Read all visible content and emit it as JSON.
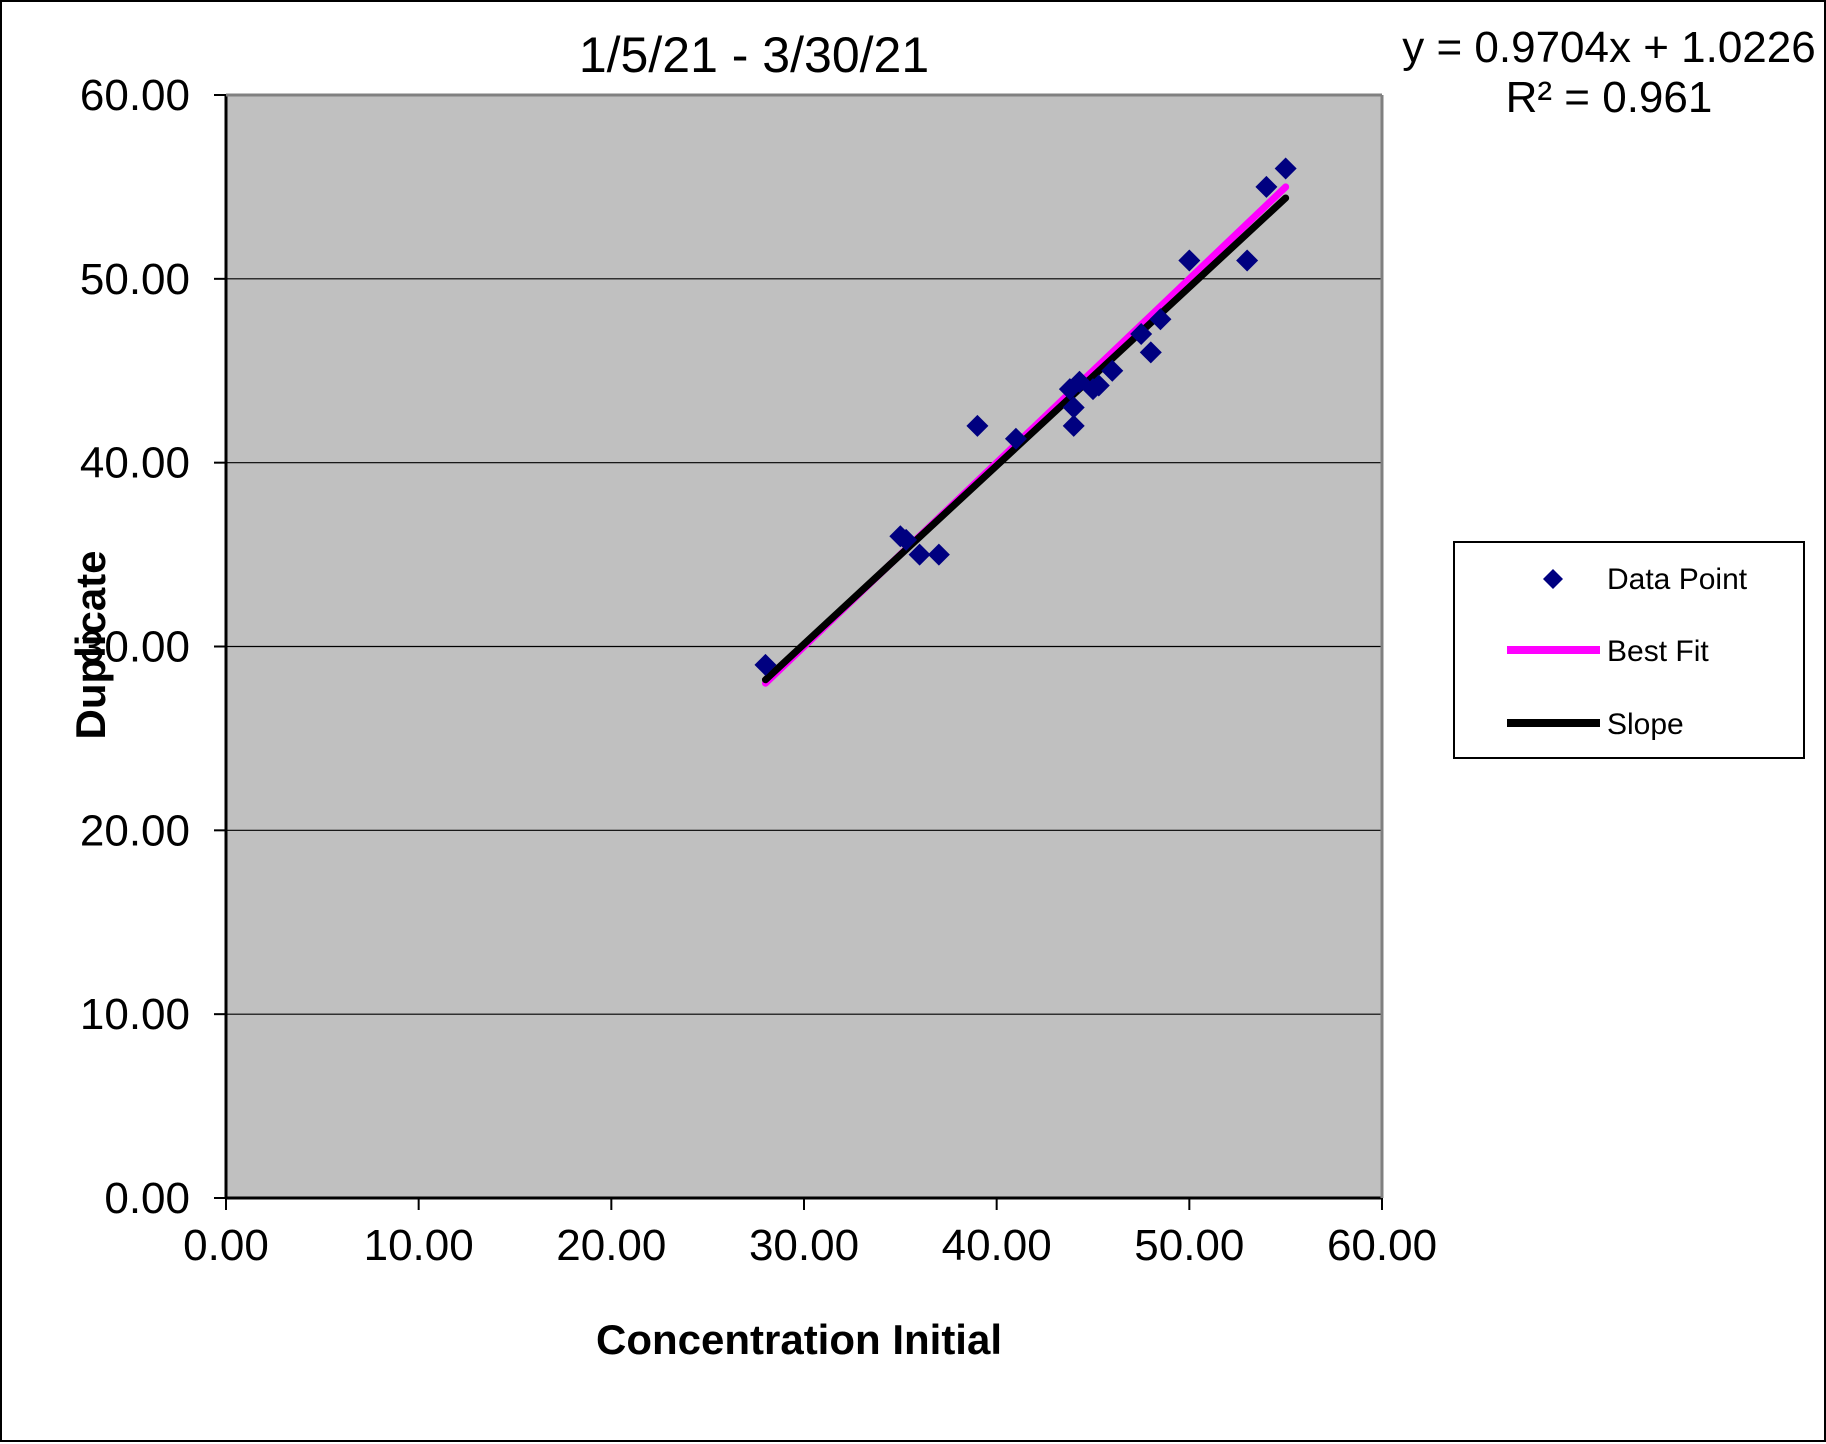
{
  "chart_data": {
    "type": "scatter",
    "title": "1/5/21 - 3/30/21",
    "xlabel": "Concentration Initial",
    "ylabel": "Duplicate",
    "xlim": [
      0,
      60
    ],
    "ylim": [
      0,
      60
    ],
    "x_ticks": [
      "0.00",
      "10.00",
      "20.00",
      "30.00",
      "40.00",
      "50.00",
      "60.00"
    ],
    "y_ticks": [
      "0.00",
      "10.00",
      "20.00",
      "30.00",
      "40.00",
      "50.00",
      "60.00"
    ],
    "grid": "horizontal",
    "plot_background": "#C0C0C0",
    "trendline_equation": "y = 0.9704x + 1.0226",
    "r_squared": "R² = 0.961",
    "legend_position": "right",
    "series": [
      {
        "name": "Data Point",
        "kind": "scatter",
        "marker": "diamond",
        "color": "#000080",
        "points": [
          [
            28,
            29
          ],
          [
            35,
            36
          ],
          [
            35.3,
            35.8
          ],
          [
            36,
            35
          ],
          [
            37,
            35
          ],
          [
            39,
            42
          ],
          [
            41,
            41.3
          ],
          [
            43.8,
            44
          ],
          [
            44,
            43
          ],
          [
            44,
            42
          ],
          [
            44.3,
            44.4
          ],
          [
            45,
            44
          ],
          [
            45.3,
            44.2
          ],
          [
            46,
            45
          ],
          [
            47.5,
            47
          ],
          [
            48,
            46
          ],
          [
            48.5,
            47.8
          ],
          [
            50,
            51
          ],
          [
            53,
            51
          ],
          [
            54,
            55
          ],
          [
            55,
            56
          ]
        ]
      },
      {
        "name": "Best Fit",
        "kind": "line",
        "color": "#FF00FF",
        "points": [
          [
            28,
            28
          ],
          [
            55,
            55
          ]
        ]
      },
      {
        "name": "Slope",
        "kind": "line",
        "color": "#000000",
        "points": [
          [
            28,
            28.19
          ],
          [
            55,
            54.4
          ]
        ]
      }
    ]
  }
}
